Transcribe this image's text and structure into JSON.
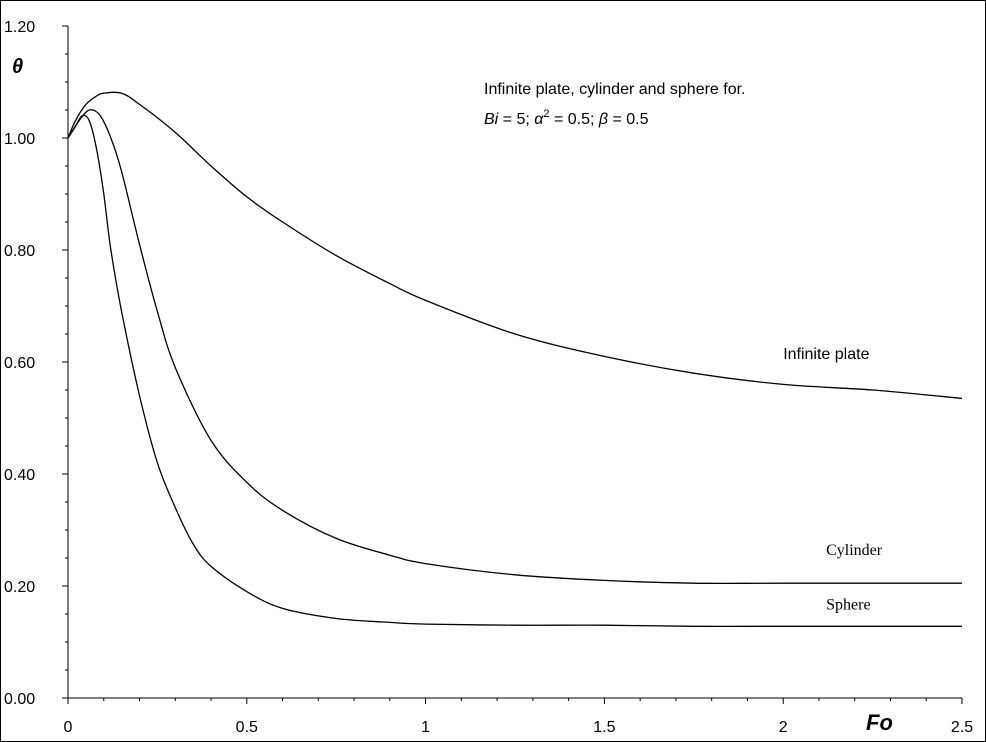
{
  "chart_data": {
    "type": "line",
    "xlabel": "Fo",
    "ylabel": "θ",
    "xlim": [
      0,
      2.5
    ],
    "ylim": [
      0,
      1.2
    ],
    "x_ticks": [
      "0",
      "0.5",
      "1",
      "1.5",
      "2",
      "2.5"
    ],
    "y_ticks": [
      "0.00",
      "0.20",
      "0.40",
      "0.60",
      "0.80",
      "1.00",
      "1.20"
    ],
    "annotation": {
      "line1": "Infinite plate, cylinder and sphere for.",
      "line2_bi": "Bi",
      "line2_a": " = 5; ",
      "line2_alpha": "α",
      "line2_sup": "2",
      "line2_b": " = 0.5; ",
      "line2_beta": "β",
      "line2_c": " = 0.5"
    },
    "series": [
      {
        "name": "Infinite plate",
        "points": [
          [
            0,
            1.0
          ],
          [
            0.02,
            1.03
          ],
          [
            0.05,
            1.06
          ],
          [
            0.08,
            1.075
          ],
          [
            0.1,
            1.08
          ],
          [
            0.15,
            1.08
          ],
          [
            0.2,
            1.06
          ],
          [
            0.3,
            1.01
          ],
          [
            0.4,
            0.95
          ],
          [
            0.5,
            0.895
          ],
          [
            0.6,
            0.85
          ],
          [
            0.75,
            0.79
          ],
          [
            0.9,
            0.74
          ],
          [
            1.0,
            0.71
          ],
          [
            1.25,
            0.65
          ],
          [
            1.5,
            0.61
          ],
          [
            1.75,
            0.58
          ],
          [
            2.0,
            0.56
          ],
          [
            2.25,
            0.55
          ],
          [
            2.5,
            0.535
          ]
        ]
      },
      {
        "name": "Cylinder",
        "points": [
          [
            0,
            1.0
          ],
          [
            0.03,
            1.03
          ],
          [
            0.06,
            1.05
          ],
          [
            0.09,
            1.04
          ],
          [
            0.12,
            1.0
          ],
          [
            0.15,
            0.94
          ],
          [
            0.2,
            0.81
          ],
          [
            0.25,
            0.69
          ],
          [
            0.3,
            0.59
          ],
          [
            0.4,
            0.46
          ],
          [
            0.5,
            0.385
          ],
          [
            0.6,
            0.335
          ],
          [
            0.75,
            0.285
          ],
          [
            0.9,
            0.255
          ],
          [
            1.0,
            0.24
          ],
          [
            1.25,
            0.22
          ],
          [
            1.5,
            0.21
          ],
          [
            1.75,
            0.205
          ],
          [
            2.0,
            0.205
          ],
          [
            2.5,
            0.205
          ]
        ]
      },
      {
        "name": "Sphere",
        "points": [
          [
            0,
            1.0
          ],
          [
            0.02,
            1.02
          ],
          [
            0.04,
            1.04
          ],
          [
            0.06,
            1.03
          ],
          [
            0.08,
            0.98
          ],
          [
            0.1,
            0.9
          ],
          [
            0.12,
            0.8
          ],
          [
            0.15,
            0.69
          ],
          [
            0.2,
            0.54
          ],
          [
            0.25,
            0.42
          ],
          [
            0.3,
            0.34
          ],
          [
            0.35,
            0.275
          ],
          [
            0.4,
            0.235
          ],
          [
            0.5,
            0.19
          ],
          [
            0.6,
            0.16
          ],
          [
            0.75,
            0.142
          ],
          [
            0.9,
            0.135
          ],
          [
            1.0,
            0.132
          ],
          [
            1.25,
            0.13
          ],
          [
            1.5,
            0.13
          ],
          [
            1.75,
            0.128
          ],
          [
            2.0,
            0.128
          ],
          [
            2.5,
            0.128
          ]
        ]
      }
    ],
    "series_labels": [
      {
        "text": "Infinite plate",
        "at": [
          2.0,
          0.605
        ],
        "font": "sans"
      },
      {
        "text": "Cylinder",
        "at": [
          2.12,
          0.255
        ],
        "font": "serif"
      },
      {
        "text": "Sphere",
        "at": [
          2.12,
          0.158
        ],
        "font": "serif"
      }
    ],
    "colors": {
      "line": "#000000",
      "background": "#ffffff"
    }
  }
}
